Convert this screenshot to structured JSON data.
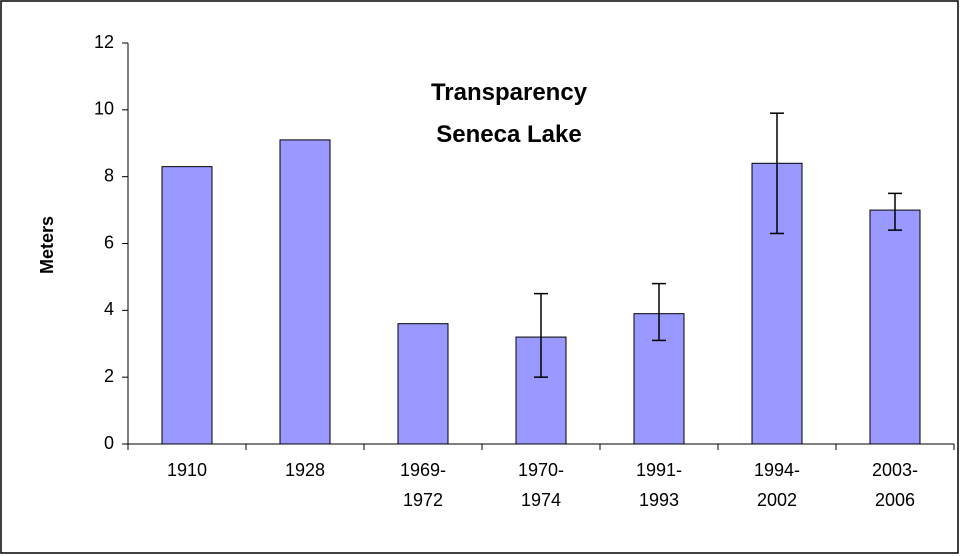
{
  "chart_data": {
    "type": "bar",
    "title": "Transparency\nSeneca Lake",
    "y_label": "Meters",
    "categories": [
      "1910",
      "1928",
      "1969-\n1972",
      "1970-\n1974",
      "1991-\n1993",
      "1994-\n2002",
      "2003-\n2006"
    ],
    "values": [
      8.3,
      9.1,
      3.6,
      3.2,
      3.9,
      8.4,
      7.0
    ],
    "error_minus": [
      null,
      null,
      null,
      1.2,
      0.8,
      2.1,
      0.6
    ],
    "error_plus": [
      null,
      null,
      null,
      1.3,
      0.9,
      1.5,
      0.5
    ],
    "color": "#9999ff",
    "ylim": [
      0,
      12
    ],
    "yticks": [
      0,
      2,
      4,
      6,
      8,
      10,
      12
    ],
    "grid": false
  }
}
